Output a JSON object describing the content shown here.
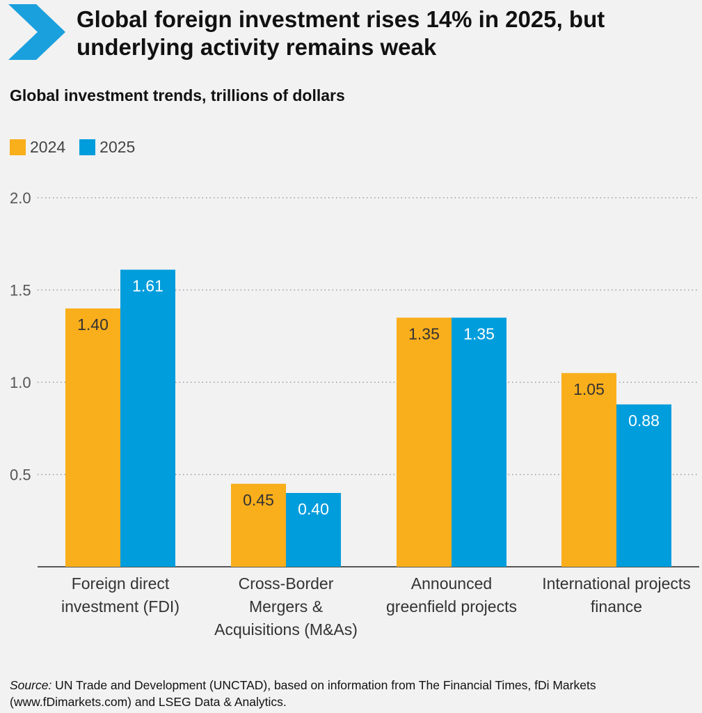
{
  "header": {
    "title": "Global foreign investment rises 14% in 2025, but underlying activity remains weak",
    "subtitle": "Global investment trends, trillions of dollars",
    "icon": "chevron-right-icon",
    "accent_color": "#1aa0dd"
  },
  "legend": {
    "items": [
      {
        "label": "2024",
        "color": "#f9ae1b"
      },
      {
        "label": "2025",
        "color": "#009ddc"
      }
    ]
  },
  "chart_data": {
    "type": "bar",
    "title": "Global investment trends, trillions of dollars",
    "xlabel": "",
    "ylabel": "",
    "ylim": [
      0,
      2.0
    ],
    "yticks": [
      "0.5",
      "1.0",
      "1.5",
      "2.0"
    ],
    "grid": true,
    "legend_position": "top-left",
    "categories": [
      [
        "Foreign direct",
        "investment (FDI)"
      ],
      [
        "Cross-Border",
        "Mergers &",
        "Acquisitions (M&As)"
      ],
      [
        "Announced",
        "greenfield projects"
      ],
      [
        "International projects",
        "finance"
      ]
    ],
    "series": [
      {
        "name": "2024",
        "color": "#f9ae1b",
        "values": [
          1.4,
          0.45,
          1.35,
          1.05
        ],
        "labels": [
          "1.40",
          "0.45",
          "1.35",
          "1.05"
        ]
      },
      {
        "name": "2025",
        "color": "#009ddc",
        "values": [
          1.61,
          0.4,
          1.35,
          0.88
        ],
        "labels": [
          "1.61",
          "0.40",
          "1.35",
          "0.88"
        ]
      }
    ]
  },
  "footer": {
    "source_label": "Source:",
    "source_text": " UN Trade and Development (UNCTAD), based on information from The Financial Times, fDi Markets (www.fDimarkets.com) and LSEG Data & Analytics."
  }
}
